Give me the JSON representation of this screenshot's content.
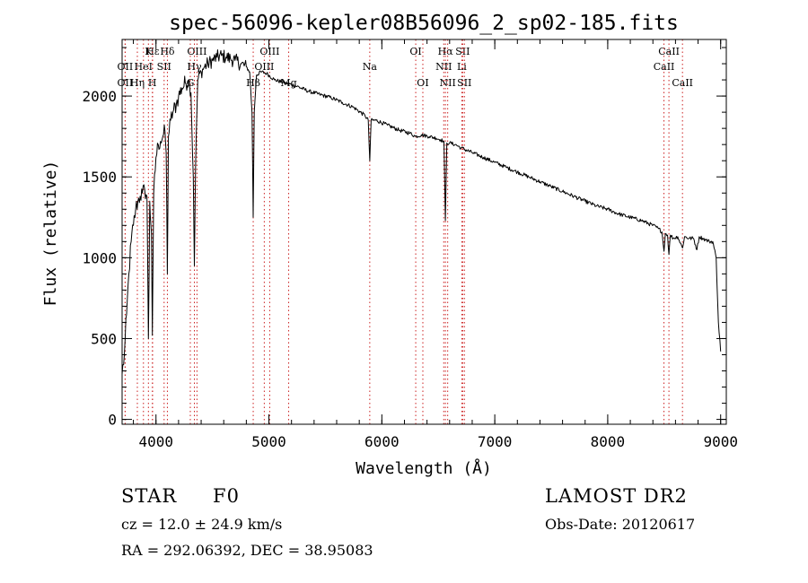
{
  "chart_data": {
    "type": "line",
    "title": "spec-56096-kepler08B56096_2_sp02-185.fits",
    "xlabel": "Wavelength (Å)",
    "ylabel": "Flux (relative)",
    "xlim": [
      3700,
      9050
    ],
    "ylim": [
      -30,
      2350
    ],
    "xticks": [
      4000,
      5000,
      6000,
      7000,
      8000,
      9000
    ],
    "yticks": [
      0,
      500,
      1000,
      1500,
      2000
    ],
    "grid": false,
    "series": [
      {
        "x": [
          3700,
          3720,
          3740,
          3760,
          3780,
          3800,
          3820,
          3840,
          3860,
          3880,
          3900,
          3920,
          3933,
          3945,
          3960,
          3968,
          3980,
          4000,
          4020,
          4040,
          4060,
          4080,
          4090,
          4101,
          4110,
          4130,
          4150,
          4180,
          4200,
          4230,
          4260,
          4290,
          4310,
          4330,
          4340,
          4350,
          4370,
          4400,
          4430,
          4460,
          4500,
          4540,
          4580,
          4620,
          4660,
          4700,
          4750,
          4800,
          4830,
          4850,
          4861,
          4870,
          4890,
          4930,
          4980,
          5050,
          5150,
          5250,
          5350,
          5450,
          5550,
          5650,
          5750,
          5850,
          5880,
          5893,
          5905,
          5950,
          6050,
          6150,
          6250,
          6300,
          6350,
          6420,
          6480,
          6520,
          6550,
          6563,
          6575,
          6600,
          6650,
          6700,
          6800,
          6900,
          7000,
          7100,
          7200,
          7300,
          7400,
          7500,
          7600,
          7700,
          7800,
          7900,
          8000,
          8100,
          8200,
          8300,
          8400,
          8450,
          8480,
          8498,
          8510,
          8530,
          8542,
          8555,
          8580,
          8620,
          8662,
          8680,
          8720,
          8760,
          8790,
          8810,
          8840,
          8870,
          8900,
          8930,
          8960,
          8980,
          9000
        ],
        "y": [
          280,
          400,
          650,
          900,
          1100,
          1200,
          1300,
          1350,
          1380,
          1400,
          1420,
          1380,
          500,
          1350,
          1150,
          520,
          1400,
          1620,
          1700,
          1720,
          1750,
          1780,
          1650,
          900,
          1750,
          1850,
          1900,
          1950,
          2000,
          2050,
          2080,
          2100,
          2020,
          1500,
          950,
          1550,
          2100,
          2150,
          2180,
          2200,
          2220,
          2240,
          2250,
          2240,
          2230,
          2220,
          2200,
          2180,
          2150,
          1900,
          1250,
          1900,
          2130,
          2150,
          2140,
          2100,
          2080,
          2060,
          2030,
          2010,
          1990,
          1960,
          1930,
          1880,
          1850,
          1600,
          1850,
          1850,
          1820,
          1790,
          1770,
          1750,
          1760,
          1750,
          1740,
          1730,
          1720,
          1230,
          1710,
          1710,
          1700,
          1680,
          1650,
          1620,
          1590,
          1560,
          1530,
          1500,
          1470,
          1440,
          1410,
          1380,
          1350,
          1320,
          1300,
          1270,
          1250,
          1230,
          1200,
          1180,
          1160,
          1040,
          1150,
          1140,
          1020,
          1140,
          1120,
          1130,
          1060,
          1130,
          1120,
          1120,
          1050,
          1130,
          1120,
          1110,
          1100,
          1100,
          1000,
          600,
          420
        ]
      }
    ],
    "line_markers": [
      {
        "name": "Hε",
        "lambda": 3970,
        "row": 0
      },
      {
        "name": "K",
        "lambda": 3933,
        "row": 0
      },
      {
        "name": "Hδ",
        "lambda": 4101,
        "row": 0
      },
      {
        "name": "OIII",
        "lambda": 4363,
        "row": 0
      },
      {
        "name": "OIII",
        "lambda": 5007,
        "row": 0
      },
      {
        "name": "OI",
        "lambda": 6300,
        "row": 0
      },
      {
        "name": "Hα",
        "lambda": 6563,
        "row": 0
      },
      {
        "name": "SII",
        "lambda": 6716,
        "row": 0
      },
      {
        "name": "CaII",
        "lambda": 8542,
        "row": 0
      },
      {
        "name": "OII",
        "lambda": 3727,
        "row": 1
      },
      {
        "name": "HeI",
        "lambda": 3889,
        "row": 1
      },
      {
        "name": "SII",
        "lambda": 4072,
        "row": 1
      },
      {
        "name": "Hγ",
        "lambda": 4340,
        "row": 1
      },
      {
        "name": "OIII",
        "lambda": 4959,
        "row": 1
      },
      {
        "name": "Na",
        "lambda": 5893,
        "row": 1
      },
      {
        "name": "NII",
        "lambda": 6548,
        "row": 1
      },
      {
        "name": "Li",
        "lambda": 6708,
        "row": 1
      },
      {
        "name": "CaII",
        "lambda": 8498,
        "row": 1
      },
      {
        "name": "OII",
        "lambda": 3727,
        "row": 2
      },
      {
        "name": "Hη",
        "lambda": 3835,
        "row": 2
      },
      {
        "name": "H",
        "lambda": 3968,
        "row": 2
      },
      {
        "name": "G",
        "lambda": 4304,
        "row": 2
      },
      {
        "name": "Hβ",
        "lambda": 4861,
        "row": 2
      },
      {
        "name": "Mg",
        "lambda": 5175,
        "row": 2
      },
      {
        "name": "OI",
        "lambda": 6363,
        "row": 2
      },
      {
        "name": "NII",
        "lambda": 6583,
        "row": 2
      },
      {
        "name": "SII",
        "lambda": 6731,
        "row": 2
      },
      {
        "name": "CaII",
        "lambda": 8662,
        "row": 2
      }
    ]
  },
  "footer": {
    "object_class": "STAR",
    "subclass": "F0",
    "survey": "LAMOST DR2",
    "redshift": "cz = 12.0 ± 24.9 km/s",
    "obs_date": "Obs-Date: 20120617",
    "coords": "RA = 292.06392, DEC =  38.95083"
  }
}
